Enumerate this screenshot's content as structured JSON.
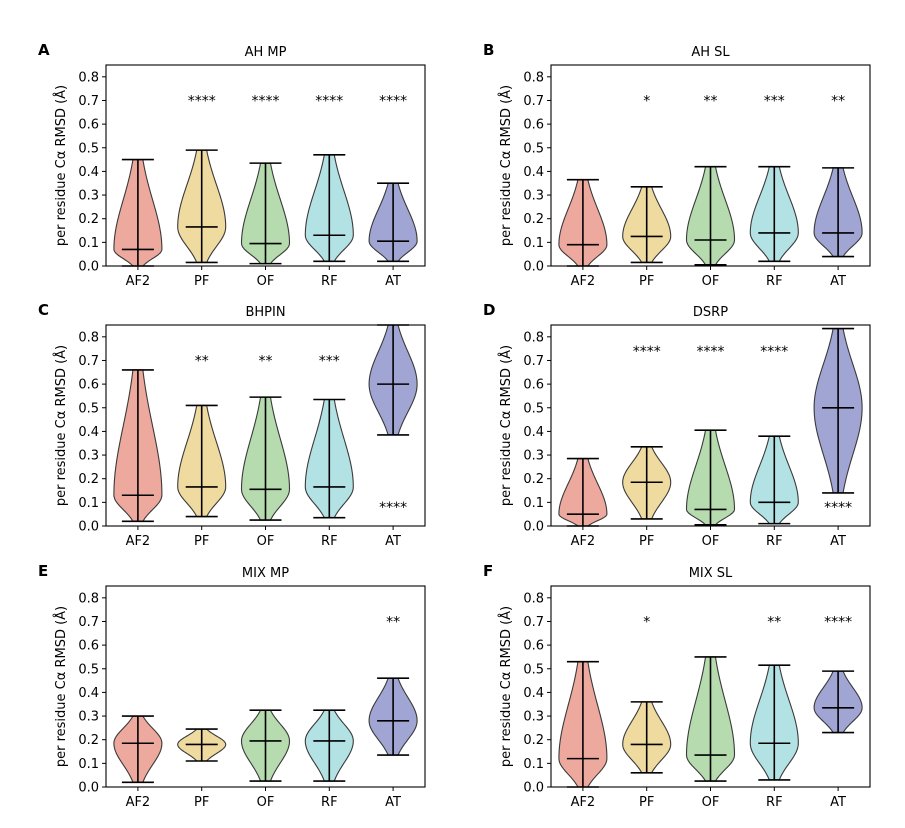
{
  "chart_data": [
    {
      "panel": "A",
      "type": "violin",
      "title": "AH MP",
      "ylabel": "per residue Cα RMSD (Å)",
      "xlabel": "",
      "ylim": [
        0,
        0.85
      ],
      "yticks": [
        "0.0",
        "0.1",
        "0.2",
        "0.3",
        "0.4",
        "0.5",
        "0.6",
        "0.7",
        "0.8"
      ],
      "categories": [
        "AF2",
        "PF",
        "OF",
        "RF",
        "AT"
      ],
      "colors": [
        "#ea9a8c",
        "#ecd38f",
        "#a8d5a0",
        "#a6dde1",
        "#8f95cc"
      ],
      "series": [
        {
          "category": "AF2",
          "min": 0.0,
          "max": 0.45,
          "median": 0.07
        },
        {
          "category": "PF",
          "min": 0.015,
          "max": 0.49,
          "median": 0.165
        },
        {
          "category": "OF",
          "min": 0.01,
          "max": 0.435,
          "median": 0.095
        },
        {
          "category": "RF",
          "min": 0.02,
          "max": 0.47,
          "median": 0.13
        },
        {
          "category": "AT",
          "min": 0.02,
          "max": 0.35,
          "median": 0.105
        }
      ],
      "significance": [
        {
          "category": "PF",
          "label": "****",
          "y": 0.7
        },
        {
          "category": "OF",
          "label": "****",
          "y": 0.7
        },
        {
          "category": "RF",
          "label": "****",
          "y": 0.7
        },
        {
          "category": "AT",
          "label": "****",
          "y": 0.7
        }
      ]
    },
    {
      "panel": "B",
      "type": "violin",
      "title": "AH SL",
      "ylabel": "per residue Cα RMSD (Å)",
      "xlabel": "",
      "ylim": [
        0,
        0.85
      ],
      "yticks": [
        "0.0",
        "0.1",
        "0.2",
        "0.3",
        "0.4",
        "0.5",
        "0.6",
        "0.7",
        "0.8"
      ],
      "categories": [
        "AF2",
        "PF",
        "OF",
        "RF",
        "AT"
      ],
      "colors": [
        "#ea9a8c",
        "#ecd38f",
        "#a8d5a0",
        "#a6dde1",
        "#8f95cc"
      ],
      "series": [
        {
          "category": "AF2",
          "min": 0.0,
          "max": 0.365,
          "median": 0.09
        },
        {
          "category": "PF",
          "min": 0.015,
          "max": 0.335,
          "median": 0.125
        },
        {
          "category": "OF",
          "min": 0.005,
          "max": 0.42,
          "median": 0.11
        },
        {
          "category": "RF",
          "min": 0.02,
          "max": 0.42,
          "median": 0.14
        },
        {
          "category": "AT",
          "min": 0.04,
          "max": 0.415,
          "median": 0.14
        }
      ],
      "significance": [
        {
          "category": "PF",
          "label": "*",
          "y": 0.7
        },
        {
          "category": "OF",
          "label": "**",
          "y": 0.7
        },
        {
          "category": "RF",
          "label": "***",
          "y": 0.7
        },
        {
          "category": "AT",
          "label": "**",
          "y": 0.7
        }
      ]
    },
    {
      "panel": "C",
      "type": "violin",
      "title": "BHPIN",
      "ylabel": "per residue Cα RMSD (Å)",
      "xlabel": "",
      "ylim": [
        0,
        0.85
      ],
      "yticks": [
        "0.0",
        "0.1",
        "0.2",
        "0.3",
        "0.4",
        "0.5",
        "0.6",
        "0.7",
        "0.8"
      ],
      "categories": [
        "AF2",
        "PF",
        "OF",
        "RF",
        "AT"
      ],
      "colors": [
        "#ea9a8c",
        "#ecd38f",
        "#a8d5a0",
        "#a6dde1",
        "#8f95cc"
      ],
      "series": [
        {
          "category": "AF2",
          "min": 0.02,
          "max": 0.66,
          "median": 0.13
        },
        {
          "category": "PF",
          "min": 0.04,
          "max": 0.51,
          "median": 0.165
        },
        {
          "category": "OF",
          "min": 0.025,
          "max": 0.545,
          "median": 0.155
        },
        {
          "category": "RF",
          "min": 0.035,
          "max": 0.535,
          "median": 0.165
        },
        {
          "category": "AT",
          "min": 0.385,
          "max": 0.85,
          "median": 0.6
        }
      ],
      "significance": [
        {
          "category": "PF",
          "label": "**",
          "y": 0.7
        },
        {
          "category": "OF",
          "label": "**",
          "y": 0.7
        },
        {
          "category": "RF",
          "label": "***",
          "y": 0.7
        },
        {
          "category": "AT",
          "label": "****",
          "y": 0.08
        }
      ]
    },
    {
      "panel": "D",
      "type": "violin",
      "title": "DSRP",
      "ylabel": "per residue Cα RMSD (Å)",
      "xlabel": "",
      "ylim": [
        0,
        0.85
      ],
      "yticks": [
        "0.0",
        "0.1",
        "0.2",
        "0.3",
        "0.4",
        "0.5",
        "0.6",
        "0.7",
        "0.8"
      ],
      "categories": [
        "AF2",
        "PF",
        "OF",
        "RF",
        "AT"
      ],
      "colors": [
        "#ea9a8c",
        "#ecd38f",
        "#a8d5a0",
        "#a6dde1",
        "#8f95cc"
      ],
      "series": [
        {
          "category": "AF2",
          "min": 0.0,
          "max": 0.285,
          "median": 0.05
        },
        {
          "category": "PF",
          "min": 0.03,
          "max": 0.335,
          "median": 0.185
        },
        {
          "category": "OF",
          "min": 0.005,
          "max": 0.405,
          "median": 0.07
        },
        {
          "category": "RF",
          "min": 0.01,
          "max": 0.38,
          "median": 0.1
        },
        {
          "category": "AT",
          "min": 0.14,
          "max": 0.835,
          "median": 0.5
        }
      ],
      "significance": [
        {
          "category": "PF",
          "label": "****",
          "y": 0.74
        },
        {
          "category": "OF",
          "label": "****",
          "y": 0.74
        },
        {
          "category": "RF",
          "label": "****",
          "y": 0.74
        },
        {
          "category": "AT",
          "label": "****",
          "y": 0.08
        }
      ]
    },
    {
      "panel": "E",
      "type": "violin",
      "title": "MIX MP",
      "ylabel": "per residue Cα RMSD (Å)",
      "xlabel": "",
      "ylim": [
        0,
        0.85
      ],
      "yticks": [
        "0.0",
        "0.1",
        "0.2",
        "0.3",
        "0.4",
        "0.5",
        "0.6",
        "0.7",
        "0.8"
      ],
      "categories": [
        "AF2",
        "PF",
        "OF",
        "RF",
        "AT"
      ],
      "colors": [
        "#ea9a8c",
        "#ecd38f",
        "#a8d5a0",
        "#a6dde1",
        "#8f95cc"
      ],
      "series": [
        {
          "category": "AF2",
          "min": 0.02,
          "max": 0.3,
          "median": 0.185
        },
        {
          "category": "PF",
          "min": 0.11,
          "max": 0.245,
          "median": 0.18
        },
        {
          "category": "OF",
          "min": 0.025,
          "max": 0.325,
          "median": 0.195
        },
        {
          "category": "RF",
          "min": 0.025,
          "max": 0.325,
          "median": 0.195
        },
        {
          "category": "AT",
          "min": 0.135,
          "max": 0.46,
          "median": 0.28
        }
      ],
      "significance": [
        {
          "category": "AT",
          "label": "**",
          "y": 0.7
        }
      ]
    },
    {
      "panel": "F",
      "type": "violin",
      "title": "MIX SL",
      "ylabel": "per residue Cα RMSD (Å)",
      "xlabel": "",
      "ylim": [
        0,
        0.85
      ],
      "yticks": [
        "0.0",
        "0.1",
        "0.2",
        "0.3",
        "0.4",
        "0.5",
        "0.6",
        "0.7",
        "0.8"
      ],
      "categories": [
        "AF2",
        "PF",
        "OF",
        "RF",
        "AT"
      ],
      "colors": [
        "#ea9a8c",
        "#ecd38f",
        "#a8d5a0",
        "#a6dde1",
        "#8f95cc"
      ],
      "series": [
        {
          "category": "AF2",
          "min": 0.0,
          "max": 0.53,
          "median": 0.12
        },
        {
          "category": "PF",
          "min": 0.06,
          "max": 0.36,
          "median": 0.18
        },
        {
          "category": "OF",
          "min": 0.025,
          "max": 0.55,
          "median": 0.135
        },
        {
          "category": "RF",
          "min": 0.03,
          "max": 0.515,
          "median": 0.185
        },
        {
          "category": "AT",
          "min": 0.23,
          "max": 0.49,
          "median": 0.335
        }
      ],
      "significance": [
        {
          "category": "PF",
          "label": "*",
          "y": 0.7
        },
        {
          "category": "RF",
          "label": "**",
          "y": 0.7
        },
        {
          "category": "AT",
          "label": "****",
          "y": 0.7
        }
      ]
    }
  ]
}
